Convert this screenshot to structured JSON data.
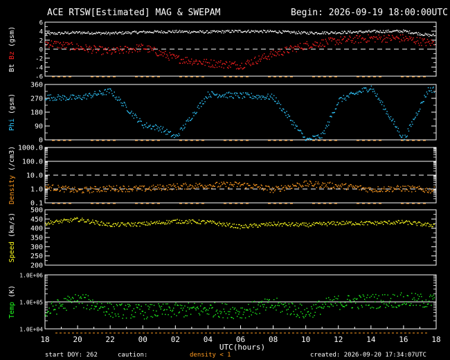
{
  "header": {
    "title": "ACE RTSW[Estimated] MAG & SWEPAM",
    "begin": "Begin: 2026-09-19 18:00:00UTC"
  },
  "footer": {
    "start_doy": "start DOY: 262",
    "caution": "caution:",
    "density_note": "density < 1",
    "created": "created: 2026-09-20 17:34:07UTC"
  },
  "colors": {
    "bt": "#ffffff",
    "bz": "#ff2020",
    "phi": "#30c8ff",
    "density": "#ff9a20",
    "speed": "#ffff20",
    "temp": "#20ff20",
    "caution": "#ff9a20"
  },
  "chart_data": [
    {
      "type": "scatter",
      "panel": "mag",
      "ylabel_parts": [
        "Bt",
        "Bz",
        "(gsm)"
      ],
      "ylim": [
        -6,
        6
      ],
      "yticks": [
        "6",
        "4",
        "2",
        "0",
        "-2",
        "-4",
        "-6"
      ],
      "x": [
        0,
        2,
        4,
        6,
        8,
        10,
        12,
        14,
        16,
        18,
        20,
        22,
        23.5
      ],
      "series": [
        {
          "name": "Bt",
          "values": [
            3.5,
            3.8,
            3.6,
            3.9,
            4.0,
            3.9,
            4.1,
            4.0,
            3.7,
            3.8,
            4.0,
            4.1,
            3.2
          ]
        },
        {
          "name": "Bz",
          "values": [
            1.5,
            0.5,
            -0.5,
            0.5,
            -2.0,
            -3.0,
            -3.5,
            -1.0,
            1.0,
            2.0,
            2.5,
            2.5,
            1.5
          ]
        }
      ]
    },
    {
      "type": "scatter",
      "panel": "phi",
      "ylabel_parts": [
        "Phi",
        "(gsm)"
      ],
      "ylim": [
        0,
        360
      ],
      "yticks": [
        "360",
        "270",
        "180",
        "90",
        "0"
      ],
      "x": [
        0,
        2,
        4,
        6,
        7,
        8,
        10,
        12,
        14,
        16,
        17,
        18,
        20,
        22,
        23.5
      ],
      "values": [
        280,
        275,
        320,
        100,
        80,
        20,
        300,
        290,
        280,
        0,
        30,
        260,
        345,
        5,
        330
      ]
    },
    {
      "type": "scatter",
      "panel": "density",
      "ylabel_parts": [
        "Density",
        "(/cm3)"
      ],
      "yscale": "log",
      "ylim": [
        0.1,
        1000
      ],
      "yticks": [
        "1000.0",
        "100.0",
        "10.0",
        "1.0",
        "0.1"
      ],
      "x": [
        0,
        2,
        4,
        6,
        8,
        10,
        12,
        14,
        16,
        18,
        20,
        22,
        23.5
      ],
      "values": [
        1.5,
        0.8,
        1.2,
        1.1,
        1.6,
        2.0,
        2.2,
        0.9,
        2.5,
        1.8,
        1.0,
        1.2,
        0.9
      ]
    },
    {
      "type": "scatter",
      "panel": "speed",
      "ylabel_parts": [
        "Speed",
        "(km/s)"
      ],
      "ylim": [
        200,
        500
      ],
      "yticks": [
        "500",
        "450",
        "400",
        "350",
        "300",
        "250",
        "200"
      ],
      "x": [
        0,
        2,
        4,
        6,
        8,
        10,
        12,
        14,
        16,
        18,
        20,
        22,
        23.5
      ],
      "values": [
        430,
        450,
        420,
        425,
        440,
        435,
        410,
        425,
        420,
        430,
        430,
        435,
        420
      ]
    },
    {
      "type": "scatter",
      "panel": "temp",
      "ylabel_parts": [
        "Temp",
        "(K)"
      ],
      "yscale": "log",
      "ylim": [
        10000,
        1000000
      ],
      "yticks": [
        "1.0E+06",
        "1.0E+05",
        "1.0E+04"
      ],
      "x": [
        0,
        2,
        4,
        6,
        8,
        10,
        12,
        14,
        16,
        18,
        20,
        22,
        23.5
      ],
      "values": [
        40000,
        120000,
        50000,
        45000,
        50000,
        55000,
        45000,
        80000,
        40000,
        100000,
        110000,
        120000,
        110000
      ]
    }
  ],
  "xaxis": {
    "label": "UTC(hours)",
    "ticks": [
      "18",
      "20",
      "22",
      "00",
      "02",
      "04",
      "06",
      "08",
      "10",
      "12",
      "14",
      "16",
      "18"
    ]
  }
}
